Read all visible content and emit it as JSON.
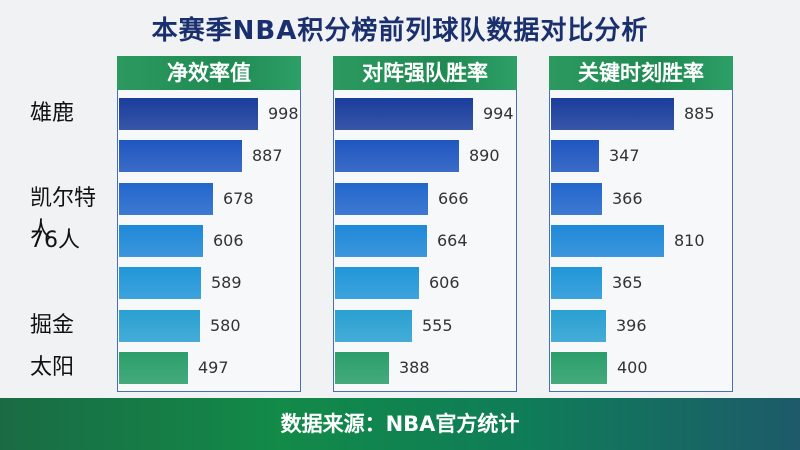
{
  "chart_data": {
    "type": "bar",
    "title": "本赛季NBA积分榜前列球队数据对比分析",
    "categories": [
      "雄鹿",
      "",
      "凯尔特人",
      "76人",
      "",
      "掘金",
      "太阳"
    ],
    "series": [
      {
        "name": "净效率值",
        "values": [
          998,
          887,
          678,
          606,
          589,
          580,
          497
        ]
      },
      {
        "name": "对阵强队胜率",
        "values": [
          994,
          890,
          666,
          664,
          606,
          555,
          388
        ]
      },
      {
        "name": "关键时刻胜率",
        "values": [
          885,
          347,
          366,
          810,
          365,
          396,
          400
        ]
      }
    ],
    "bar_colors": [
      "#1a3d9c",
      "#1f56c0",
      "#2266cc",
      "#1f88d8",
      "#2196d8",
      "#2aa0d2",
      "#2a9e6a"
    ],
    "value_label_color": "#333333",
    "header_color": "#1f8a52"
  },
  "footer": {
    "text": "数据来源：NBA官方统计"
  }
}
